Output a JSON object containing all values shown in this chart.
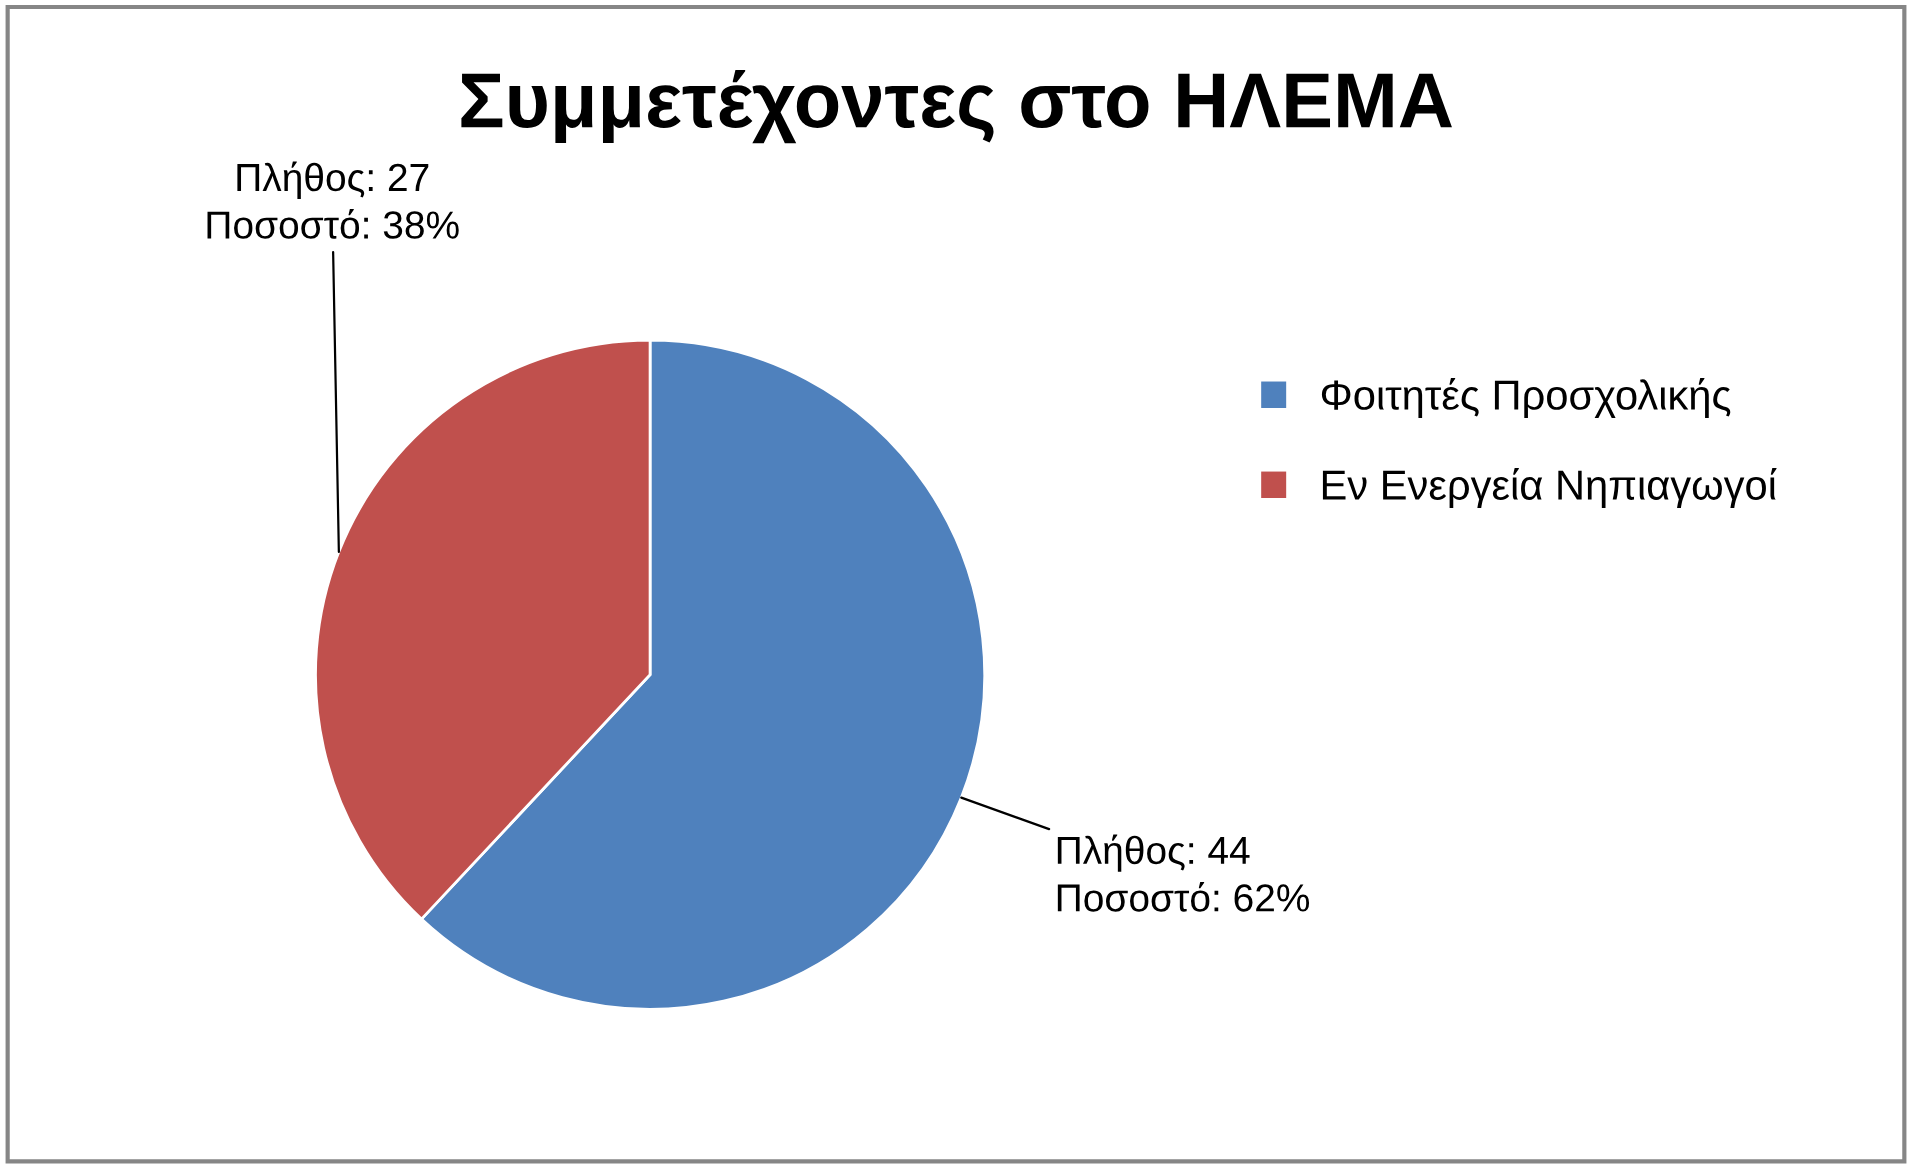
{
  "chart_data": {
    "type": "pie",
    "title": "Συμμετέχοντες στο ΗΛΕΜΑ",
    "categories": [
      "Φοιτητές Προσχολικής",
      "Εν Ενεργεία Νηπιαγωγοί"
    ],
    "values": [
      44,
      27
    ],
    "colors": [
      "#4f81bd",
      "#c0504d"
    ],
    "value_labels": [
      "Πλήθος: 44\nΠοσοστό: 62%",
      "Πλήθος: 27\nΠοσοστό: 38%"
    ],
    "legend": "right"
  }
}
